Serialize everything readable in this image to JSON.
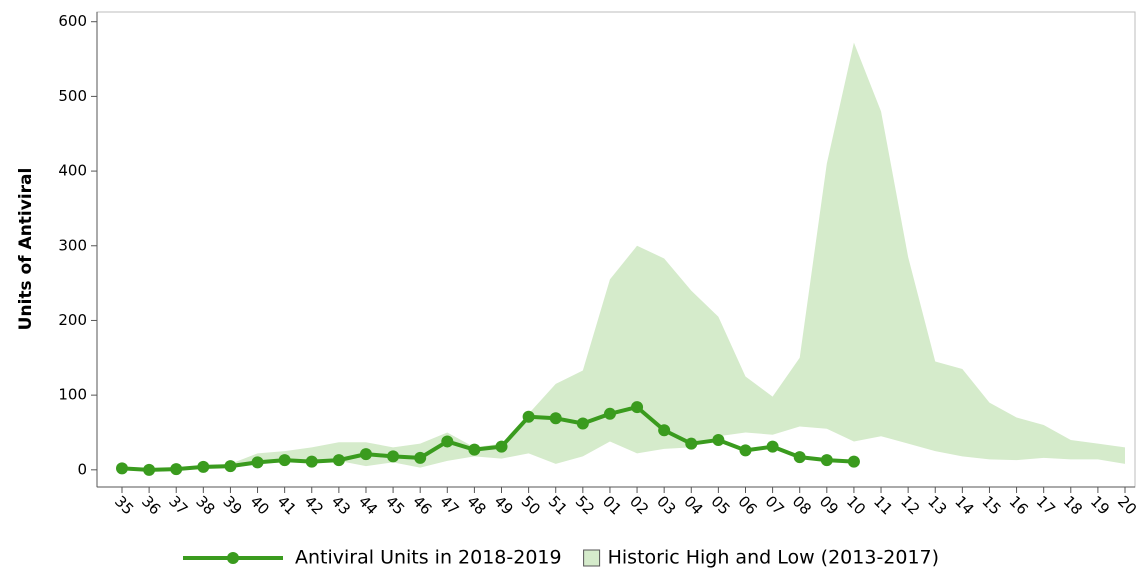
{
  "chart_data": {
    "type": "line-band",
    "y_label": "Units of Antiviral",
    "categories": [
      "35",
      "36",
      "37",
      "38",
      "39",
      "40",
      "41",
      "42",
      "43",
      "44",
      "45",
      "46",
      "47",
      "48",
      "49",
      "50",
      "51",
      "52",
      "01",
      "02",
      "03",
      "04",
      "05",
      "06",
      "07",
      "08",
      "09",
      "10",
      "11",
      "12",
      "13",
      "14",
      "15",
      "16",
      "17",
      "18",
      "19",
      "20"
    ],
    "series": [
      {
        "name": "Antiviral Units in 2018-2019",
        "color": "#3a9b1e",
        "values": [
          2,
          0,
          1,
          4,
          5,
          10,
          13,
          11,
          13,
          21,
          18,
          16,
          38,
          27,
          31,
          71,
          69,
          62,
          75,
          84,
          53,
          35,
          40,
          26,
          31,
          17,
          13,
          11,
          null,
          null,
          null,
          null,
          null,
          null,
          null,
          null,
          null,
          null
        ]
      },
      {
        "name": "Historic High and Low (2013-2017)",
        "color": "#d5ebcb",
        "high": [
          3,
          2,
          3,
          5,
          8,
          22,
          25,
          30,
          37,
          37,
          30,
          35,
          50,
          30,
          35,
          75,
          115,
          133,
          255,
          300,
          283,
          240,
          205,
          125,
          98,
          150,
          410,
          572,
          480,
          285,
          145,
          135,
          90,
          70,
          60,
          40,
          35,
          30
        ],
        "low": [
          0,
          0,
          0,
          1,
          2,
          8,
          10,
          10,
          12,
          5,
          10,
          3,
          12,
          18,
          15,
          22,
          8,
          18,
          38,
          22,
          28,
          30,
          45,
          50,
          47,
          58,
          55,
          38,
          45,
          35,
          25,
          18,
          14,
          13,
          16,
          14,
          14,
          8
        ]
      }
    ],
    "ylim": [
      -23,
      613
    ],
    "yticks": [
      0,
      100,
      200,
      300,
      400,
      500,
      600
    ]
  }
}
